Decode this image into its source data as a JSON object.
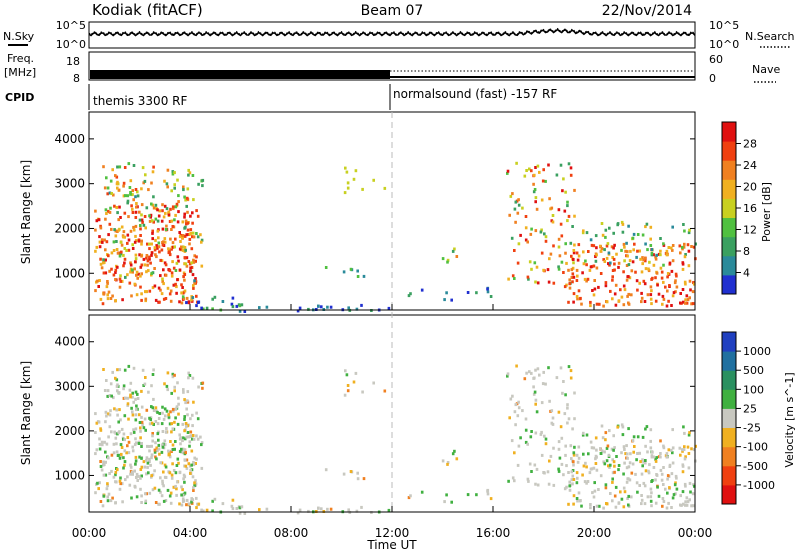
{
  "header": {
    "station": "Kodiak (fitACF)",
    "beam": "Beam 07",
    "date": "22/Nov/2014"
  },
  "top_strip": {
    "left_label": "N.Sky",
    "left_ticks": [
      "10^5",
      "10^0"
    ],
    "right_ticks": [
      "10^5",
      "10^0"
    ],
    "right_label": "N.Search"
  },
  "freq_strip": {
    "left_label_1": "Freq.",
    "left_label_2": "[MHz]",
    "left_ticks": [
      "18",
      "8"
    ],
    "right_ticks": [
      "60",
      "0"
    ],
    "right_label": "Nave"
  },
  "cpid": {
    "label": "CPID",
    "segment_1": "themis 3300 RF",
    "segment_2": "normalsound (fast) -157 RF"
  },
  "chart_data": [
    {
      "type": "heatmap",
      "title": "",
      "xlabel": "",
      "ylabel": "Slant Range [km]",
      "x_range_hours": [
        0,
        24
      ],
      "ylim": [
        180,
        4600
      ],
      "yticks": [
        "1000",
        "2000",
        "3000",
        "4000"
      ],
      "colorbar": {
        "label": "Power [dB]",
        "ticks": [
          "4",
          "8",
          "12",
          "16",
          "20",
          "24",
          "28"
        ],
        "colors": [
          "#2030d0",
          "#2a8a9a",
          "#3aa060",
          "#50c040",
          "#c8d020",
          "#f0b020",
          "#f08020",
          "#f04010",
          "#e01010"
        ]
      }
    },
    {
      "type": "heatmap",
      "title": "",
      "xlabel": "Time UT",
      "ylabel": "Slant Range [km]",
      "x_range_hours": [
        0,
        24
      ],
      "ylim": [
        180,
        4600
      ],
      "yticks": [
        "1000",
        "2000",
        "3000",
        "4000"
      ],
      "colorbar": {
        "label": "Velocity [m s^-1]",
        "ticks": [
          "1000",
          "500",
          "100",
          "25",
          "-25",
          "-100",
          "-500",
          "-1000"
        ],
        "colors": [
          "#2040c0",
          "#2070a0",
          "#2a9060",
          "#40b040",
          "#c8c8c0",
          "#f0b020",
          "#f08020",
          "#f04010",
          "#e01010"
        ]
      },
      "xticks": [
        "00:00",
        "04:00",
        "08:00",
        "12:00",
        "16:00",
        "20:00",
        "00:00"
      ]
    }
  ]
}
